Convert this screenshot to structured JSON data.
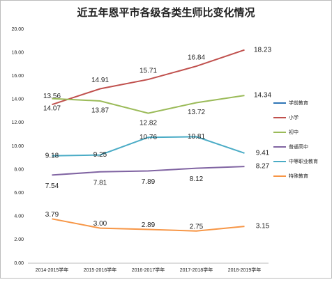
{
  "chart_data": {
    "type": "line",
    "title": "近五年恩平市各级各类生师比变化情况",
    "categories": [
      "2014-2015学年",
      "2015-2016学年",
      "2016-2017学年",
      "2017-2018学年",
      "2018-2019学年"
    ],
    "series": [
      {
        "name": "学前教育",
        "color": "#2e75b6",
        "values": [
          null,
          null,
          null,
          null,
          null
        ]
      },
      {
        "name": "小学",
        "color": "#c0504d",
        "values": [
          13.56,
          14.91,
          15.71,
          16.84,
          18.23
        ],
        "value_labels": [
          "13.56",
          "14.91",
          "15.71",
          "16.84",
          "18.23"
        ]
      },
      {
        "name": "初中",
        "color": "#9bbb59",
        "values": [
          14.07,
          13.87,
          12.82,
          13.72,
          14.34
        ],
        "value_labels": [
          "14.07",
          "13.87",
          "12.82",
          "13.72",
          "14.34"
        ]
      },
      {
        "name": "普通高中",
        "color": "#8064a2",
        "values": [
          7.54,
          7.81,
          7.89,
          8.12,
          8.27
        ],
        "value_labels": [
          "7.54",
          "7.81",
          "7.89",
          "8.12",
          "8.27"
        ]
      },
      {
        "name": "中等职业教育",
        "color": "#4bacc6",
        "values": [
          9.18,
          9.25,
          10.76,
          10.81,
          9.41
        ],
        "value_labels": [
          "9.18",
          "9.25",
          "10.76",
          "10.81",
          "9.41"
        ]
      },
      {
        "name": "特殊教育",
        "color": "#f79646",
        "values": [
          3.79,
          3.0,
          2.89,
          2.75,
          3.15
        ],
        "value_labels": [
          "3.79",
          "3.00",
          "2.89",
          "2.75",
          "3.15"
        ]
      }
    ],
    "ylim": [
      0,
      20
    ],
    "yticks": [
      {
        "value": 0,
        "label": "0.00"
      },
      {
        "value": 2,
        "label": "2.00"
      },
      {
        "value": 4,
        "label": "4.00"
      },
      {
        "value": 6,
        "label": "6.00"
      },
      {
        "value": 8,
        "label": "8.00"
      },
      {
        "value": 10,
        "label": "10.00"
      },
      {
        "value": 12,
        "label": "12.00"
      },
      {
        "value": 14,
        "label": "14.00"
      },
      {
        "value": 16,
        "label": "16.00"
      },
      {
        "value": 18,
        "label": "18.00"
      },
      {
        "value": 20,
        "label": "20.00"
      }
    ],
    "grid": false,
    "legend": "right"
  }
}
